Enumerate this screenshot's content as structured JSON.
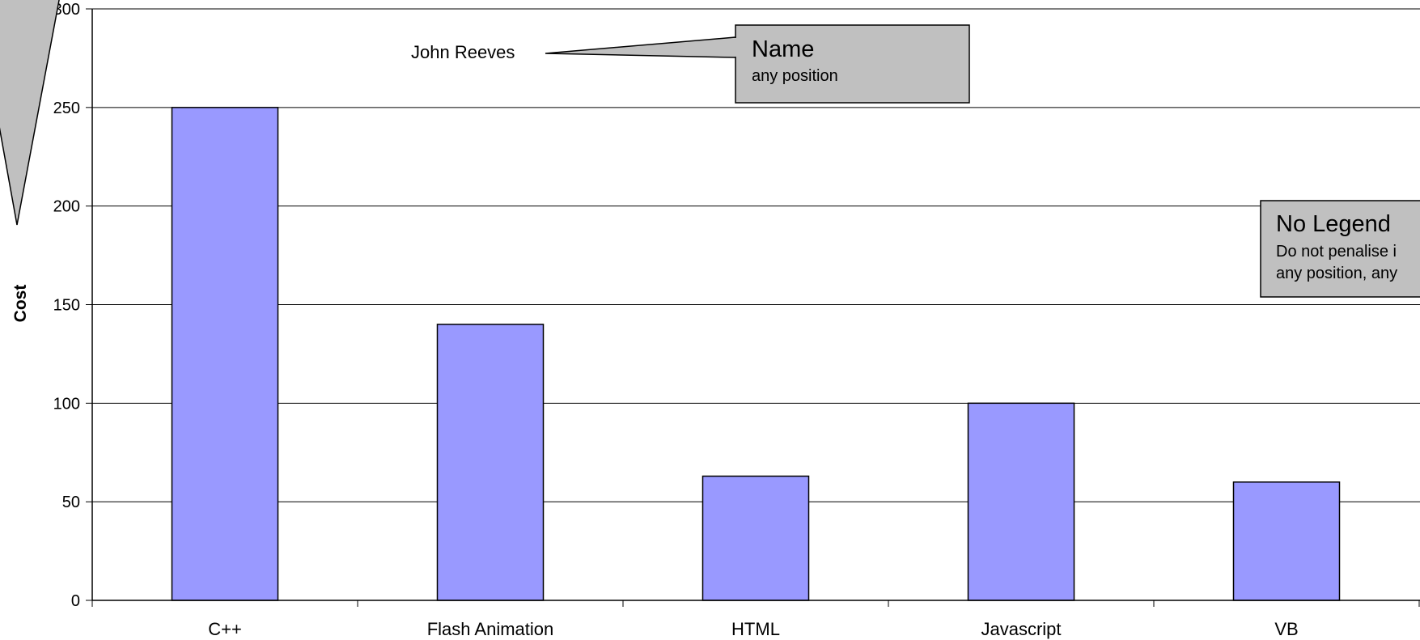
{
  "chart_data": {
    "type": "bar",
    "categories": [
      "C++",
      "Flash Animation",
      "HTML",
      "Javascript",
      "VB"
    ],
    "values": [
      250,
      140,
      63,
      100,
      60
    ],
    "ylabel": "Cost",
    "ylim": [
      0,
      300
    ],
    "yticks": [
      0,
      50,
      100,
      150,
      200,
      250,
      300
    ],
    "grid": true,
    "legend": "none",
    "bar_color": "#9999FF",
    "annotations": {
      "author": "John Reeves",
      "name_box": {
        "title": "Name",
        "text": "any position"
      },
      "legend_box": {
        "title": "No Legend",
        "line1": "Do not penalise i",
        "line2": "any position, any"
      }
    }
  }
}
